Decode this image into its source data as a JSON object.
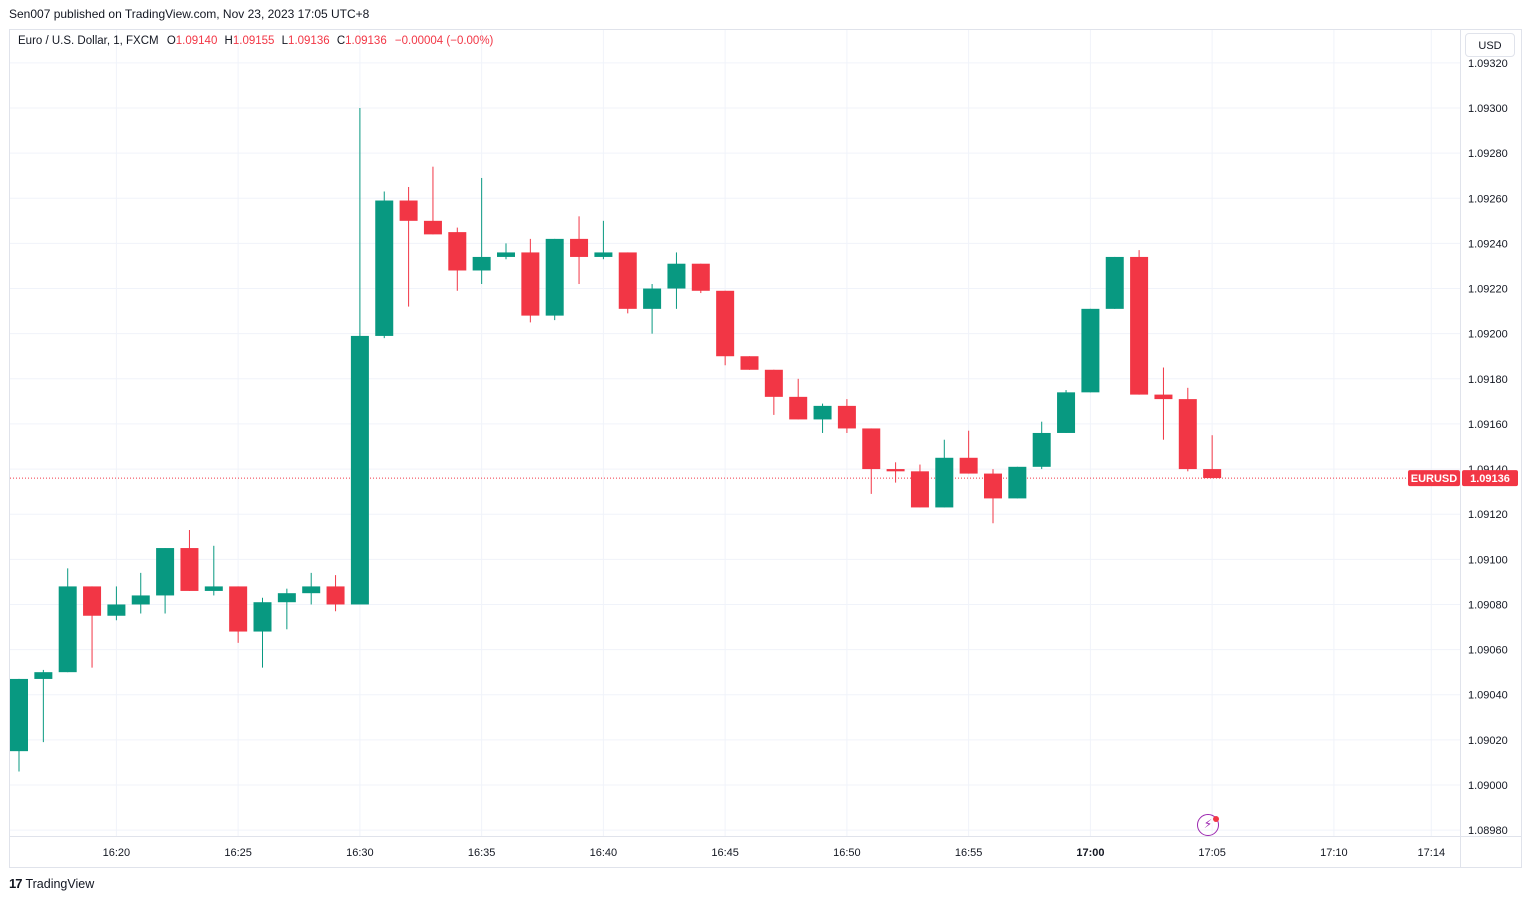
{
  "header": {
    "published": "Sen007 published on TradingView.com, Nov 23, 2023 17:05 UTC+8"
  },
  "legend": {
    "symbol": "Euro / U.S. Dollar, 1, FXCM",
    "o_label": "O",
    "o_value": "1.09140",
    "h_label": "H",
    "h_value": "1.09155",
    "l_label": "L",
    "l_value": "1.09136",
    "c_label": "C",
    "c_value": "1.09136",
    "change": "−0.00004 (−0.00%)"
  },
  "currency_button": "USD",
  "footer": {
    "logo_mark": "17",
    "brand": "TradingView"
  },
  "colors": {
    "up": "#089981",
    "down": "#f23645",
    "grid": "#f0f3fa",
    "price_line": "#f23645"
  },
  "icons": {
    "flash": "lightning-icon"
  },
  "chart_data": {
    "type": "candlestick",
    "symbol": "EURUSD",
    "interval": "1",
    "grid": true,
    "ylim": [
      1.08975,
      1.09325
    ],
    "y_ticks": [
      "1.08980",
      "1.09000",
      "1.09020",
      "1.09040",
      "1.09060",
      "1.09080",
      "1.09100",
      "1.09120",
      "1.09140",
      "1.09160",
      "1.09180",
      "1.09200",
      "1.09220",
      "1.09240",
      "1.09260",
      "1.09280",
      "1.09300",
      "1.09320"
    ],
    "x_ticks": [
      {
        "label": "16:20",
        "index": 4,
        "bold": false
      },
      {
        "label": "16:25",
        "index": 9,
        "bold": false
      },
      {
        "label": "16:30",
        "index": 14,
        "bold": false
      },
      {
        "label": "16:35",
        "index": 19,
        "bold": false
      },
      {
        "label": "16:40",
        "index": 24,
        "bold": false
      },
      {
        "label": "16:45",
        "index": 29,
        "bold": false
      },
      {
        "label": "16:50",
        "index": 34,
        "bold": false
      },
      {
        "label": "16:55",
        "index": 39,
        "bold": false
      },
      {
        "label": "17:00",
        "index": 44,
        "bold": true
      },
      {
        "label": "17:05",
        "index": 49,
        "bold": false
      },
      {
        "label": "17:10",
        "index": 54,
        "bold": false
      },
      {
        "label": "17:14",
        "index": 58,
        "bold": false
      }
    ],
    "last_price": {
      "symbol_label": "EURUSD",
      "value": "1.09136",
      "price": 1.09136
    },
    "candles": [
      {
        "o": 1.09015,
        "h": 1.09047,
        "l": 1.09006,
        "c": 1.09047
      },
      {
        "o": 1.09047,
        "h": 1.09051,
        "l": 1.09019,
        "c": 1.0905
      },
      {
        "o": 1.0905,
        "h": 1.09096,
        "l": 1.0905,
        "c": 1.09088
      },
      {
        "o": 1.09088,
        "h": 1.09088,
        "l": 1.09052,
        "c": 1.09075
      },
      {
        "o": 1.09075,
        "h": 1.09088,
        "l": 1.09073,
        "c": 1.0908
      },
      {
        "o": 1.0908,
        "h": 1.09094,
        "l": 1.09076,
        "c": 1.09084
      },
      {
        "o": 1.09084,
        "h": 1.09105,
        "l": 1.09076,
        "c": 1.09105
      },
      {
        "o": 1.09105,
        "h": 1.09113,
        "l": 1.09086,
        "c": 1.09086
      },
      {
        "o": 1.09086,
        "h": 1.09106,
        "l": 1.09084,
        "c": 1.09088
      },
      {
        "o": 1.09088,
        "h": 1.09088,
        "l": 1.09063,
        "c": 1.09068
      },
      {
        "o": 1.09068,
        "h": 1.09083,
        "l": 1.09052,
        "c": 1.09081
      },
      {
        "o": 1.09081,
        "h": 1.09087,
        "l": 1.09069,
        "c": 1.09085
      },
      {
        "o": 1.09085,
        "h": 1.09094,
        "l": 1.0908,
        "c": 1.09088
      },
      {
        "o": 1.09088,
        "h": 1.09093,
        "l": 1.09077,
        "c": 1.0908
      },
      {
        "o": 1.0908,
        "h": 1.093,
        "l": 1.0908,
        "c": 1.09199
      },
      {
        "o": 1.09199,
        "h": 1.09263,
        "l": 1.09198,
        "c": 1.09259
      },
      {
        "o": 1.09259,
        "h": 1.09265,
        "l": 1.09212,
        "c": 1.0925
      },
      {
        "o": 1.0925,
        "h": 1.09274,
        "l": 1.09244,
        "c": 1.09244
      },
      {
        "o": 1.09245,
        "h": 1.09247,
        "l": 1.09219,
        "c": 1.09228
      },
      {
        "o": 1.09228,
        "h": 1.09269,
        "l": 1.09222,
        "c": 1.09234
      },
      {
        "o": 1.09234,
        "h": 1.0924,
        "l": 1.09233,
        "c": 1.09236
      },
      {
        "o": 1.09236,
        "h": 1.09242,
        "l": 1.09205,
        "c": 1.09208
      },
      {
        "o": 1.09208,
        "h": 1.09242,
        "l": 1.09206,
        "c": 1.09242
      },
      {
        "o": 1.09242,
        "h": 1.09252,
        "l": 1.09222,
        "c": 1.09234
      },
      {
        "o": 1.09234,
        "h": 1.0925,
        "l": 1.09233,
        "c": 1.09236
      },
      {
        "o": 1.09236,
        "h": 1.09236,
        "l": 1.09209,
        "c": 1.09211
      },
      {
        "o": 1.09211,
        "h": 1.09222,
        "l": 1.092,
        "c": 1.0922
      },
      {
        "o": 1.0922,
        "h": 1.09236,
        "l": 1.09211,
        "c": 1.09231
      },
      {
        "o": 1.09231,
        "h": 1.09231,
        "l": 1.09218,
        "c": 1.09219
      },
      {
        "o": 1.09219,
        "h": 1.09219,
        "l": 1.09186,
        "c": 1.0919
      },
      {
        "o": 1.0919,
        "h": 1.0919,
        "l": 1.09184,
        "c": 1.09184
      },
      {
        "o": 1.09184,
        "h": 1.09184,
        "l": 1.09164,
        "c": 1.09172
      },
      {
        "o": 1.09172,
        "h": 1.0918,
        "l": 1.09162,
        "c": 1.09162
      },
      {
        "o": 1.09162,
        "h": 1.09169,
        "l": 1.09156,
        "c": 1.09168
      },
      {
        "o": 1.09168,
        "h": 1.09171,
        "l": 1.09156,
        "c": 1.09158
      },
      {
        "o": 1.09158,
        "h": 1.09158,
        "l": 1.09129,
        "c": 1.0914
      },
      {
        "o": 1.0914,
        "h": 1.09143,
        "l": 1.09134,
        "c": 1.09139
      },
      {
        "o": 1.09139,
        "h": 1.09142,
        "l": 1.09123,
        "c": 1.09123
      },
      {
        "o": 1.09123,
        "h": 1.09153,
        "l": 1.09123,
        "c": 1.09145
      },
      {
        "o": 1.09145,
        "h": 1.09157,
        "l": 1.09138,
        "c": 1.09138
      },
      {
        "o": 1.09138,
        "h": 1.0914,
        "l": 1.09116,
        "c": 1.09127
      },
      {
        "o": 1.09127,
        "h": 1.09141,
        "l": 1.09127,
        "c": 1.09141
      },
      {
        "o": 1.09141,
        "h": 1.09161,
        "l": 1.0914,
        "c": 1.09156
      },
      {
        "o": 1.09156,
        "h": 1.09175,
        "l": 1.09156,
        "c": 1.09174
      },
      {
        "o": 1.09174,
        "h": 1.09211,
        "l": 1.09174,
        "c": 1.09211
      },
      {
        "o": 1.09211,
        "h": 1.09234,
        "l": 1.09211,
        "c": 1.09234
      },
      {
        "o": 1.09234,
        "h": 1.09237,
        "l": 1.09173,
        "c": 1.09173
      },
      {
        "o": 1.09173,
        "h": 1.09185,
        "l": 1.09153,
        "c": 1.09171
      },
      {
        "o": 1.09171,
        "h": 1.09176,
        "l": 1.09139,
        "c": 1.0914
      },
      {
        "o": 1.0914,
        "h": 1.09155,
        "l": 1.09136,
        "c": 1.09136
      }
    ]
  }
}
